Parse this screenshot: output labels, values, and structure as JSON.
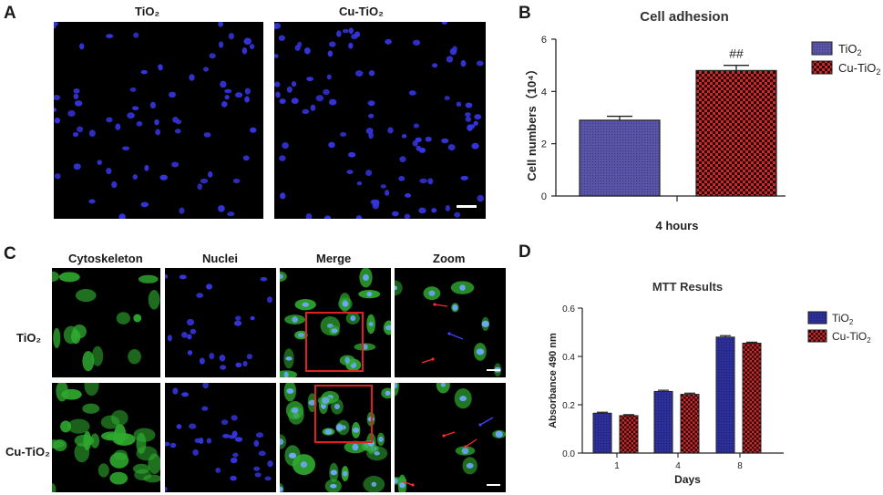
{
  "panelA": {
    "letter": "A",
    "labels": [
      "TiO₂",
      "Cu-TiO₂"
    ]
  },
  "panelB": {
    "letter": "B",
    "significance": "##",
    "legend": [
      "TiO2",
      "Cu-TiO2"
    ]
  },
  "panelC": {
    "letter": "C",
    "columns": [
      "Cytoskeleton",
      "Nuclei",
      "Merge",
      "Zoom"
    ],
    "rows": [
      "TiO₂",
      "Cu-TiO₂"
    ]
  },
  "panelD": {
    "letter": "D",
    "legend": [
      "TiO2",
      "Cu-TiO2"
    ]
  },
  "colors": {
    "tio2_fill": "#4a4a9a",
    "cu_fill": "#d63030",
    "nuclei_blue": "#3535e0",
    "actin_green": "#2faa2f",
    "highlight_box": "#e02020"
  },
  "chart_data": [
    {
      "type": "bar",
      "title": "Cell adhesion",
      "categories": [
        "4 hours"
      ],
      "xlabel": "4 hours",
      "ylabel": "Cell numbers（10⁴）",
      "ylim": [
        0,
        6
      ],
      "yticks": [
        0,
        2,
        4,
        6
      ],
      "series": [
        {
          "name": "TiO2",
          "values": [
            2.9
          ],
          "error": [
            0.15
          ]
        },
        {
          "name": "Cu-TiO2",
          "values": [
            4.8
          ],
          "error": [
            0.2
          ]
        }
      ],
      "annotations": [
        "##"
      ],
      "legend_position": "top-right"
    },
    {
      "type": "bar",
      "title": "MTT Results",
      "categories": [
        "1",
        "4",
        "8"
      ],
      "xlabel": "Days",
      "ylabel": "Absorbance 490 nm",
      "ylim": [
        0,
        0.6
      ],
      "yticks": [
        0.0,
        0.2,
        0.4,
        0.6
      ],
      "series": [
        {
          "name": "TiO2",
          "values": [
            0.165,
            0.255,
            0.48
          ],
          "error": [
            0.004,
            0.005,
            0.006
          ]
        },
        {
          "name": "Cu-TiO2",
          "values": [
            0.155,
            0.243,
            0.455
          ],
          "error": [
            0.004,
            0.005,
            0.004
          ]
        }
      ],
      "legend_position": "top-right"
    }
  ]
}
